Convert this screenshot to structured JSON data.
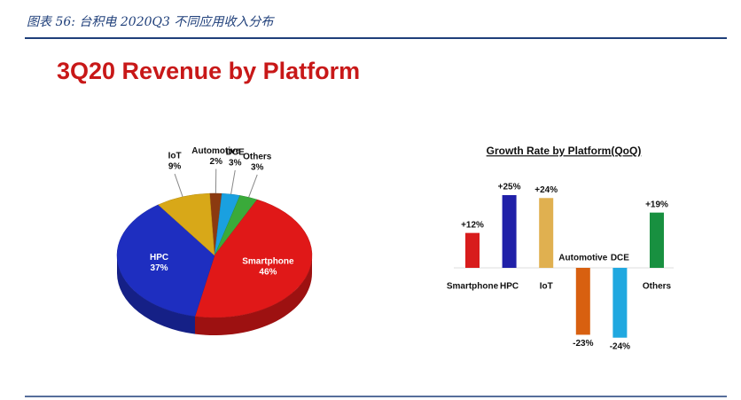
{
  "header": {
    "caption": "图表 56: 台积电 2020Q3 不同应用收入分布"
  },
  "slide": {
    "title": "3Q20 Revenue by Platform"
  },
  "chart_data": [
    {
      "type": "pie",
      "categories": [
        "Automotive",
        "DCE",
        "Others",
        "Smartphone",
        "HPC",
        "IoT"
      ],
      "values": [
        2,
        3,
        3,
        46,
        37,
        9
      ],
      "value_labels": [
        "2%",
        "3%",
        "3%",
        "46%",
        "37%",
        "9%"
      ],
      "colors": [
        "#8b3a10",
        "#1aa0e0",
        "#3aaa3a",
        "#e01818",
        "#1e2ec0",
        "#d8a818"
      ]
    },
    {
      "type": "bar",
      "title": "Growth Rate by Platform(QoQ)",
      "categories": [
        "Smartphone",
        "HPC",
        "IoT",
        "Automotive",
        "DCE",
        "Others"
      ],
      "values": [
        12,
        25,
        24,
        -23,
        -24,
        19
      ],
      "value_labels": [
        "+12%",
        "+25%",
        "+24%",
        "-23%",
        "-24%",
        "+19%"
      ],
      "colors": [
        "#d81c1c",
        "#2020a8",
        "#e0b050",
        "#d86010",
        "#20a8e0",
        "#189040"
      ]
    }
  ]
}
